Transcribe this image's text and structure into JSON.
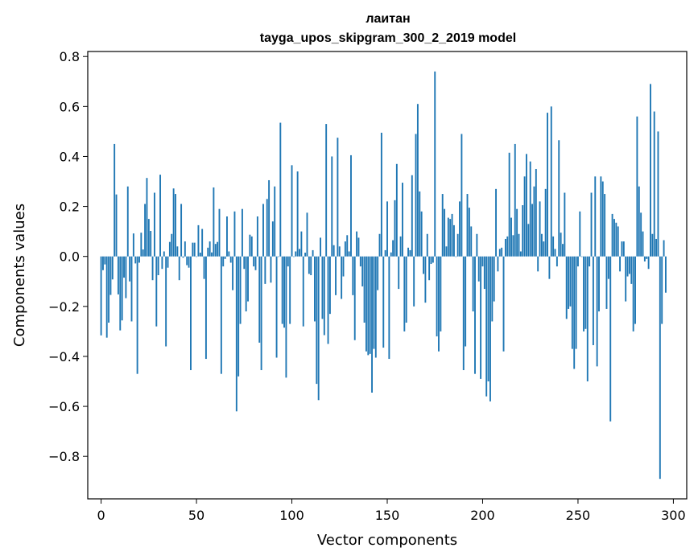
{
  "chart_data": {
    "type": "bar",
    "title_line1": "лаитан",
    "title_line2": "tayga_upos_skipgram_300_2_2019 model",
    "xlabel": "Vector components",
    "ylabel": "Components values",
    "xlim": [
      -7,
      307
    ],
    "ylim": [
      -0.97,
      0.82
    ],
    "xticks": [
      0,
      50,
      100,
      150,
      200,
      250,
      300
    ],
    "yticks": [
      -0.8,
      -0.6,
      -0.4,
      -0.2,
      0.0,
      0.2,
      0.4,
      0.6,
      0.8
    ],
    "ytick_labels": [
      "−0.8",
      "−0.6",
      "−0.4",
      "−0.2",
      "0.0",
      "0.2",
      "0.4",
      "0.6",
      "0.8"
    ],
    "bar_color": "#1f77b4",
    "values": [
      -0.316,
      -0.055,
      -0.032,
      -0.325,
      -0.265,
      -0.154,
      -0.092,
      0.45,
      0.248,
      -0.152,
      -0.296,
      -0.256,
      -0.085,
      -0.167,
      0.28,
      -0.1,
      -0.26,
      0.092,
      -0.028,
      -0.47,
      -0.025,
      0.095,
      0.028,
      0.21,
      0.314,
      0.15,
      0.102,
      -0.095,
      0.255,
      -0.28,
      -0.075,
      0.327,
      -0.05,
      0.02,
      -0.36,
      -0.045,
      0.058,
      0.09,
      0.272,
      0.25,
      0.04,
      -0.095,
      0.21,
      -0.005,
      0.06,
      -0.035,
      -0.045,
      -0.455,
      0.055,
      0.055,
      0.0,
      0.125,
      0.015,
      0.11,
      -0.09,
      -0.41,
      0.035,
      0.06,
      0.016,
      0.276,
      0.05,
      0.058,
      0.19,
      -0.47,
      -0.04,
      -0.01,
      0.16,
      0.02,
      -0.025,
      -0.135,
      0.18,
      -0.62,
      -0.48,
      -0.27,
      0.19,
      -0.05,
      -0.22,
      -0.18,
      0.087,
      0.08,
      -0.04,
      -0.055,
      0.16,
      -0.345,
      -0.455,
      0.21,
      -0.11,
      0.23,
      0.305,
      -0.105,
      0.14,
      0.28,
      -0.405,
      0.0,
      0.535,
      -0.27,
      -0.285,
      -0.485,
      -0.04,
      -0.27,
      0.365,
      0.0,
      0.02,
      0.34,
      0.03,
      0.1,
      -0.28,
      0.015,
      0.175,
      -0.07,
      -0.075,
      0.025,
      -0.26,
      -0.51,
      -0.575,
      0.075,
      -0.25,
      -0.315,
      0.53,
      -0.35,
      -0.23,
      0.4,
      0.045,
      -0.155,
      0.475,
      0.04,
      -0.17,
      -0.08,
      0.06,
      0.085,
      0.02,
      0.405,
      -0.155,
      -0.335,
      0.1,
      0.075,
      -0.04,
      -0.12,
      -0.265,
      -0.38,
      -0.395,
      -0.39,
      -0.545,
      -0.37,
      -0.405,
      -0.135,
      0.09,
      0.495,
      -0.365,
      0.025,
      0.22,
      -0.41,
      0.016,
      0.065,
      0.225,
      0.37,
      -0.13,
      0.08,
      0.295,
      -0.3,
      -0.265,
      0.035,
      0.025,
      0.325,
      -0.2,
      0.49,
      0.61,
      0.26,
      0.18,
      -0.07,
      -0.185,
      0.09,
      -0.095,
      -0.03,
      -0.025,
      0.74,
      -0.32,
      -0.38,
      -0.3,
      0.25,
      0.19,
      0.04,
      0.155,
      0.15,
      0.17,
      0.125,
      0.0,
      0.09,
      0.22,
      0.49,
      -0.455,
      -0.36,
      0.25,
      0.195,
      0.12,
      -0.22,
      -0.47,
      0.09,
      -0.1,
      -0.49,
      -0.04,
      -0.13,
      -0.56,
      -0.5,
      -0.58,
      -0.26,
      -0.18,
      0.27,
      -0.06,
      0.03,
      0.035,
      -0.38,
      0.07,
      0.08,
      0.415,
      0.155,
      0.085,
      0.45,
      0.19,
      0.09,
      0.02,
      0.205,
      0.32,
      0.41,
      0.13,
      0.38,
      0.21,
      0.28,
      0.35,
      -0.06,
      0.22,
      0.09,
      0.06,
      0.27,
      0.575,
      -0.09,
      0.6,
      0.08,
      0.03,
      -0.04,
      0.465,
      0.095,
      0.05,
      0.255,
      -0.25,
      -0.21,
      -0.2,
      -0.37,
      -0.45,
      -0.37,
      -0.04,
      0.18,
      0.0,
      -0.3,
      -0.29,
      -0.5,
      -0.04,
      0.255,
      -0.355,
      0.32,
      -0.44,
      -0.22,
      0.32,
      0.3,
      0.25,
      -0.21,
      -0.09,
      -0.66,
      0.17,
      0.15,
      0.135,
      0.12,
      -0.06,
      0.06,
      0.06,
      -0.18,
      -0.08,
      -0.07,
      -0.11,
      -0.3,
      -0.27,
      0.56,
      0.28,
      0.175,
      0.1,
      -0.02,
      -0.01,
      -0.05,
      0.69,
      0.09,
      0.58,
      0.07,
      0.5,
      -0.89,
      -0.27,
      0.065,
      -0.145
    ]
  }
}
